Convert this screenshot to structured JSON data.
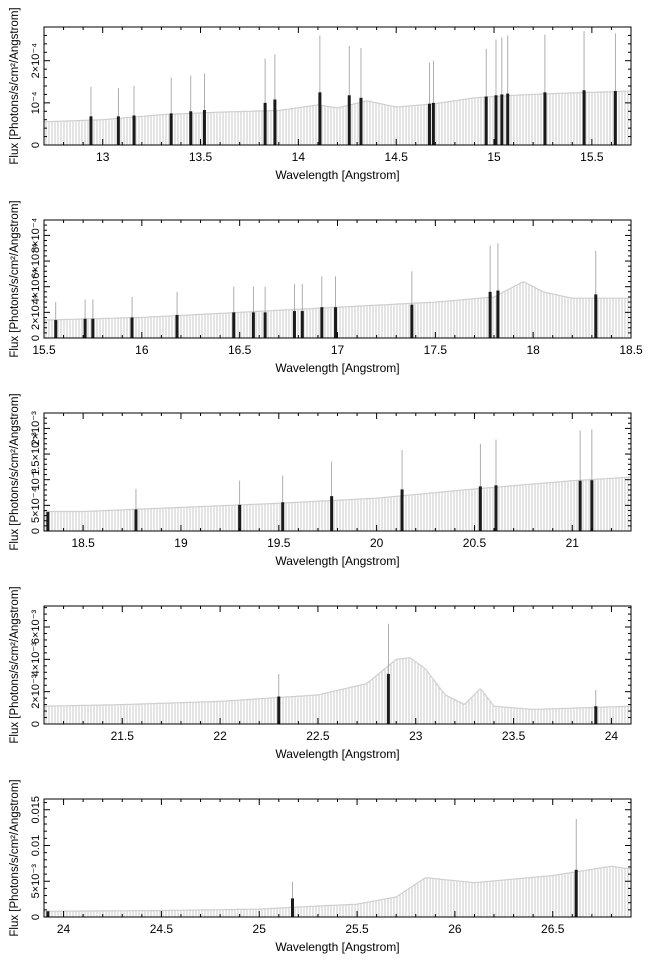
{
  "chart_data": [
    {
      "type": "bar",
      "xlabel": "Wavelength [Angstrom]",
      "ylabel": "Flux [Photons/s/cm²/Angstrom]",
      "xlim": [
        12.7,
        15.7
      ],
      "ylim": [
        0,
        0.00028
      ],
      "x_ticks": [
        "13",
        "13.5",
        "14",
        "14.5",
        "15",
        "15.5"
      ],
      "x_tick_values": [
        13,
        13.5,
        14,
        14.5,
        15,
        15.5
      ],
      "y_ticks": [
        "0",
        "10⁻⁴",
        "2×10⁻⁴"
      ],
      "y_tick_values": [
        0,
        0.0001,
        0.0002
      ],
      "continuum": [
        [
          12.7,
          5.5e-05
        ],
        [
          13.0,
          6e-05
        ],
        [
          13.3,
          7.2e-05
        ],
        [
          13.6,
          7.8e-05
        ],
        [
          13.9,
          8.2e-05
        ],
        [
          14.1,
          9.5e-05
        ],
        [
          14.2,
          8.8e-05
        ],
        [
          14.35,
          0.000105
        ],
        [
          14.5,
          9e-05
        ],
        [
          14.7,
          9.8e-05
        ],
        [
          14.9,
          0.000112
        ],
        [
          15.1,
          0.000118
        ],
        [
          15.3,
          0.000122
        ],
        [
          15.5,
          0.000125
        ],
        [
          15.7,
          0.000128
        ]
      ],
      "lines": [
        {
          "x": 12.94,
          "y": 6.8e-05,
          "err": 0.000138
        },
        {
          "x": 13.08,
          "y": 6.8e-05,
          "err": 0.000135
        },
        {
          "x": 13.16,
          "y": 7e-05,
          "err": 0.00014
        },
        {
          "x": 13.35,
          "y": 7.5e-05,
          "err": 0.00016
        },
        {
          "x": 13.45,
          "y": 8e-05,
          "err": 0.000165
        },
        {
          "x": 13.52,
          "y": 8.3e-05,
          "err": 0.00017
        },
        {
          "x": 13.83,
          "y": 0.0001,
          "err": 0.000205
        },
        {
          "x": 13.88,
          "y": 0.000108,
          "err": 0.000215
        },
        {
          "x": 14.11,
          "y": 0.000125,
          "err": 0.00026
        },
        {
          "x": 14.26,
          "y": 0.000118,
          "err": 0.000235
        },
        {
          "x": 14.32,
          "y": 0.000112,
          "err": 0.00023
        },
        {
          "x": 14.67,
          "y": 9.8e-05,
          "err": 0.000195
        },
        {
          "x": 14.69,
          "y": 0.0001,
          "err": 0.0002
        },
        {
          "x": 14.96,
          "y": 0.000115,
          "err": 0.000228
        },
        {
          "x": 15.01,
          "y": 0.000118,
          "err": 0.00025
        },
        {
          "x": 15.04,
          "y": 0.00012,
          "err": 0.000255
        },
        {
          "x": 15.07,
          "y": 0.000122,
          "err": 0.00026
        },
        {
          "x": 15.26,
          "y": 0.000125,
          "err": 0.000262
        },
        {
          "x": 15.46,
          "y": 0.00013,
          "err": 0.00027
        },
        {
          "x": 15.62,
          "y": 0.000128,
          "err": 0.000265
        }
      ]
    },
    {
      "type": "bar",
      "xlabel": "Wavelength [Angstrom]",
      "ylabel": "Flux [Photons/s/cm²/Angstrom]",
      "xlim": [
        15.5,
        18.5
      ],
      "ylim": [
        0,
        0.00092
      ],
      "x_ticks": [
        "15.5",
        "16",
        "16.5",
        "17",
        "17.5",
        "18",
        "18.5"
      ],
      "x_tick_values": [
        15.5,
        16,
        16.5,
        17,
        17.5,
        18,
        18.5
      ],
      "y_ticks": [
        "0",
        "2×10⁻⁴",
        "4×10⁻⁴",
        "6×10⁻⁴",
        "8×10⁻⁴"
      ],
      "y_tick_values": [
        0,
        0.0002,
        0.0004,
        0.0006,
        0.0008
      ],
      "continuum": [
        [
          15.5,
          0.00014
        ],
        [
          16.0,
          0.00016
        ],
        [
          16.5,
          0.0002
        ],
        [
          17.0,
          0.00024
        ],
        [
          17.5,
          0.00028
        ],
        [
          17.8,
          0.00032
        ],
        [
          17.95,
          0.00044
        ],
        [
          18.05,
          0.00036
        ],
        [
          18.2,
          0.00031
        ],
        [
          18.5,
          0.00031
        ]
      ],
      "lines": [
        {
          "x": 15.56,
          "y": 0.00014,
          "err": 0.00028
        },
        {
          "x": 15.71,
          "y": 0.00015,
          "err": 0.0003
        },
        {
          "x": 15.75,
          "y": 0.00015,
          "err": 0.0003
        },
        {
          "x": 15.95,
          "y": 0.00016,
          "err": 0.00032
        },
        {
          "x": 16.18,
          "y": 0.00018,
          "err": 0.00036
        },
        {
          "x": 16.47,
          "y": 0.0002,
          "err": 0.0004
        },
        {
          "x": 16.57,
          "y": 0.0002,
          "err": 0.0004
        },
        {
          "x": 16.63,
          "y": 0.0002,
          "err": 0.0004
        },
        {
          "x": 16.78,
          "y": 0.00021,
          "err": 0.00042
        },
        {
          "x": 16.82,
          "y": 0.00021,
          "err": 0.00042
        },
        {
          "x": 16.92,
          "y": 0.00024,
          "err": 0.00048
        },
        {
          "x": 16.99,
          "y": 0.00024,
          "err": 0.00048
        },
        {
          "x": 17.38,
          "y": 0.00026,
          "err": 0.00052
        },
        {
          "x": 17.78,
          "y": 0.00036,
          "err": 0.00072
        },
        {
          "x": 17.82,
          "y": 0.00037,
          "err": 0.00074
        },
        {
          "x": 18.32,
          "y": 0.00034,
          "err": 0.00068
        }
      ]
    },
    {
      "type": "bar",
      "xlabel": "Wavelength [Angstrom]",
      "ylabel": "Flux [Photons/s/cm²/Angstrom]",
      "xlim": [
        18.3,
        21.3
      ],
      "ylim": [
        0,
        0.0023
      ],
      "x_ticks": [
        "18.5",
        "19",
        "19.5",
        "20",
        "20.5",
        "21"
      ],
      "x_tick_values": [
        18.5,
        19,
        19.5,
        20,
        20.5,
        21
      ],
      "y_ticks": [
        "0",
        "5×10⁻⁴",
        "10⁻³",
        "1.5×10⁻³",
        "2×10⁻³"
      ],
      "y_tick_values": [
        0,
        0.0005,
        0.001,
        0.0015,
        0.002
      ],
      "continuum": [
        [
          18.3,
          0.00038
        ],
        [
          18.5,
          0.00038
        ],
        [
          19.0,
          0.00046
        ],
        [
          19.5,
          0.00054
        ],
        [
          20.0,
          0.00064
        ],
        [
          20.5,
          0.00082
        ],
        [
          21.0,
          0.00098
        ],
        [
          21.3,
          0.00105
        ]
      ],
      "lines": [
        {
          "x": 18.32,
          "y": 0.00037,
          "err": 0.0004
        },
        {
          "x": 18.77,
          "y": 0.00042,
          "err": 0.00082
        },
        {
          "x": 19.3,
          "y": 0.00051,
          "err": 0.00098
        },
        {
          "x": 19.52,
          "y": 0.00056,
          "err": 0.00108
        },
        {
          "x": 19.77,
          "y": 0.00068,
          "err": 0.00135
        },
        {
          "x": 20.13,
          "y": 0.00081,
          "err": 0.00158
        },
        {
          "x": 20.53,
          "y": 0.00087,
          "err": 0.0017
        },
        {
          "x": 20.61,
          "y": 0.00089,
          "err": 0.00178
        },
        {
          "x": 21.04,
          "y": 0.00098,
          "err": 0.00196
        },
        {
          "x": 21.1,
          "y": 0.00099,
          "err": 0.00198
        }
      ]
    },
    {
      "type": "bar",
      "xlabel": "Wavelength [Angstrom]",
      "ylabel": "Flux [Photons/s/cm²/Angstrom]",
      "xlim": [
        21.1,
        24.1
      ],
      "ylim": [
        0,
        0.0073
      ],
      "x_ticks": [
        "21.5",
        "22",
        "22.5",
        "23",
        "23.5",
        "24"
      ],
      "x_tick_values": [
        21.5,
        22,
        22.5,
        23,
        23.5,
        24
      ],
      "y_ticks": [
        "0",
        "2×10⁻³",
        "4×10⁻³",
        "6×10⁻³"
      ],
      "y_tick_values": [
        0,
        0.002,
        0.004,
        0.006
      ],
      "continuum": [
        [
          21.1,
          0.0011
        ],
        [
          21.5,
          0.0012
        ],
        [
          22.0,
          0.0014
        ],
        [
          22.5,
          0.0018
        ],
        [
          22.75,
          0.0025
        ],
        [
          22.9,
          0.004
        ],
        [
          22.97,
          0.0041
        ],
        [
          23.05,
          0.0034
        ],
        [
          23.15,
          0.0018
        ],
        [
          23.25,
          0.0012
        ],
        [
          23.33,
          0.0022
        ],
        [
          23.4,
          0.0011
        ],
        [
          23.6,
          0.0009
        ],
        [
          24.1,
          0.0011
        ]
      ],
      "lines": [
        {
          "x": 22.3,
          "y": 0.0017,
          "err": 0.0031
        },
        {
          "x": 22.86,
          "y": 0.0031,
          "err": 0.0062
        },
        {
          "x": 23.92,
          "y": 0.0011,
          "err": 0.0021
        }
      ]
    },
    {
      "type": "bar",
      "xlabel": "Wavelength [Angstrom]",
      "ylabel": "Flux [Photons/s/cm²/Angstrom]",
      "xlim": [
        23.9,
        26.9
      ],
      "ylim": [
        0,
        0.0165
      ],
      "x_ticks": [
        "24",
        "24.5",
        "25",
        "25.5",
        "26",
        "26.5"
      ],
      "x_tick_values": [
        24,
        24.5,
        25,
        25.5,
        26,
        26.5
      ],
      "y_ticks": [
        "0",
        "5×10⁻³",
        "0.01",
        "0.015"
      ],
      "y_tick_values": [
        0,
        0.005,
        0.01,
        0.015
      ],
      "continuum": [
        [
          23.9,
          0.0008
        ],
        [
          24.5,
          0.0009
        ],
        [
          25.0,
          0.0011
        ],
        [
          25.2,
          0.0014
        ],
        [
          25.5,
          0.0018
        ],
        [
          25.7,
          0.0028
        ],
        [
          25.85,
          0.0055
        ],
        [
          26.1,
          0.0048
        ],
        [
          26.5,
          0.0058
        ],
        [
          26.8,
          0.0071
        ],
        [
          26.9,
          0.0067
        ]
      ],
      "lines": [
        {
          "x": 23.92,
          "y": 0.0008,
          "err": 0.0009
        },
        {
          "x": 25.17,
          "y": 0.0026,
          "err": 0.0049
        },
        {
          "x": 26.62,
          "y": 0.0066,
          "err": 0.0137
        }
      ]
    }
  ]
}
